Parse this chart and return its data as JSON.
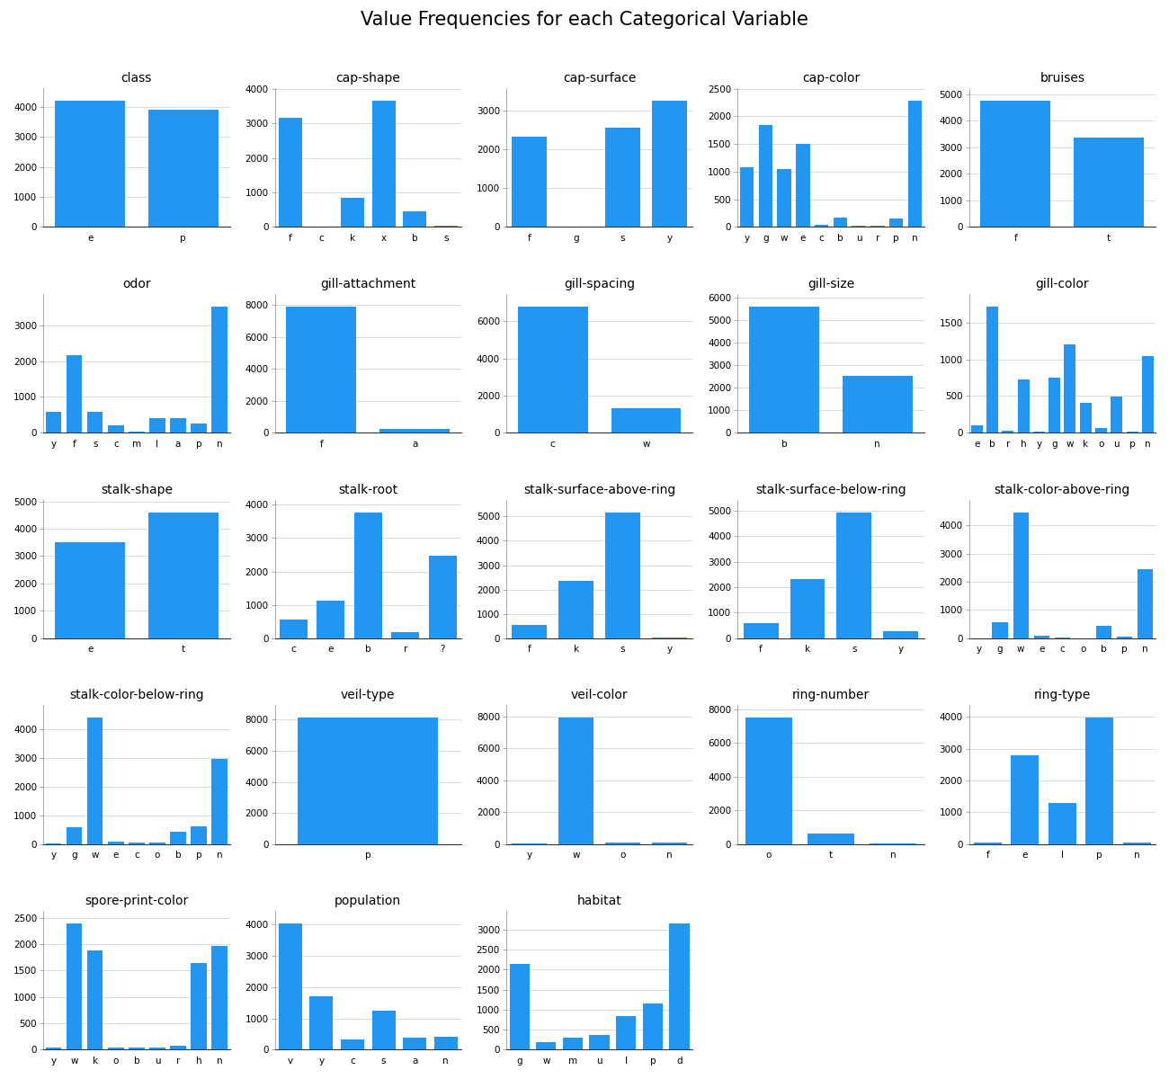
{
  "title": "Value Frequencies for each Categorical Variable",
  "bar_color": "#2196F3",
  "subplots": [
    {
      "title": "class",
      "categories": [
        "e",
        "p"
      ],
      "values": [
        4208,
        3916
      ]
    },
    {
      "title": "cap-shape",
      "categories": [
        "f",
        "c",
        "k",
        "x",
        "b",
        "s"
      ],
      "values": [
        3152,
        4,
        828,
        3656,
        452,
        32
      ]
    },
    {
      "title": "cap-surface",
      "categories": [
        "f",
        "g",
        "s",
        "y"
      ],
      "values": [
        2320,
        4,
        2556,
        3244
      ]
    },
    {
      "title": "cap-color",
      "categories": [
        "y",
        "g",
        "w",
        "e",
        "c",
        "b",
        "u",
        "r",
        "p",
        "n"
      ],
      "values": [
        1072,
        1840,
        1040,
        1500,
        44,
        168,
        16,
        16,
        144,
        2284
      ]
    },
    {
      "title": "bruises",
      "categories": [
        "f",
        "t"
      ],
      "values": [
        4748,
        3376
      ]
    },
    {
      "title": "odor",
      "categories": [
        "y",
        "f",
        "s",
        "c",
        "m",
        "l",
        "a",
        "p",
        "n"
      ],
      "values": [
        576,
        2160,
        576,
        192,
        36,
        400,
        400,
        256,
        3528
      ]
    },
    {
      "title": "gill-attachment",
      "categories": [
        "f",
        "a"
      ],
      "values": [
        7914,
        210
      ]
    },
    {
      "title": "gill-spacing",
      "categories": [
        "c",
        "w"
      ],
      "values": [
        6812,
        1312
      ]
    },
    {
      "title": "gill-size",
      "categories": [
        "b",
        "n"
      ],
      "values": [
        5612,
        2508
      ]
    },
    {
      "title": "gill-color",
      "categories": [
        "e",
        "b",
        "r",
        "h",
        "y",
        "g",
        "w",
        "k",
        "o",
        "u",
        "p",
        "n"
      ],
      "values": [
        96,
        1728,
        24,
        732,
        8,
        752,
        1202,
        408,
        64,
        492,
        16,
        1048
      ]
    },
    {
      "title": "stalk-shape",
      "categories": [
        "e",
        "t"
      ],
      "values": [
        3516,
        4608
      ]
    },
    {
      "title": "stalk-root",
      "categories": [
        "c",
        "e",
        "b",
        "r",
        "?"
      ],
      "values": [
        556,
        1120,
        3776,
        192,
        2480
      ]
    },
    {
      "title": "stalk-surface-above-ring",
      "categories": [
        "f",
        "k",
        "s",
        "y"
      ],
      "values": [
        552,
        2372,
        5176,
        24
      ]
    },
    {
      "title": "stalk-surface-below-ring",
      "categories": [
        "f",
        "k",
        "s",
        "y"
      ],
      "values": [
        600,
        2304,
        4936,
        284
      ]
    },
    {
      "title": "stalk-color-above-ring",
      "categories": [
        "y",
        "g",
        "w",
        "e",
        "c",
        "o",
        "b",
        "p",
        "n"
      ],
      "values": [
        8,
        576,
        4464,
        96,
        36,
        8,
        432,
        60,
        2448
      ]
    },
    {
      "title": "stalk-color-below-ring",
      "categories": [
        "y",
        "g",
        "w",
        "e",
        "c",
        "o",
        "b",
        "p",
        "n"
      ],
      "values": [
        8,
        576,
        4384,
        96,
        36,
        48,
        432,
        600,
        2948
      ]
    },
    {
      "title": "veil-type",
      "categories": [
        "p"
      ],
      "values": [
        8124
      ]
    },
    {
      "title": "veil-color",
      "categories": [
        "y",
        "w",
        "o",
        "n"
      ],
      "values": [
        8,
        7924,
        96,
        96
      ]
    },
    {
      "title": "ring-number",
      "categories": [
        "o",
        "t",
        "n"
      ],
      "values": [
        7488,
        600,
        36
      ]
    },
    {
      "title": "ring-type",
      "categories": [
        "f",
        "e",
        "l",
        "p",
        "n"
      ],
      "values": [
        48,
        2776,
        1296,
        3968,
        36
      ]
    },
    {
      "title": "spore-print-color",
      "categories": [
        "y",
        "w",
        "k",
        "o",
        "b",
        "u",
        "r",
        "h",
        "n"
      ],
      "values": [
        48,
        2388,
        1872,
        48,
        48,
        48,
        72,
        1632,
        1968
      ]
    },
    {
      "title": "population",
      "categories": [
        "v",
        "y",
        "c",
        "s",
        "a",
        "n"
      ],
      "values": [
        4040,
        1712,
        340,
        1248,
        384,
        400
      ]
    },
    {
      "title": "habitat",
      "categories": [
        "g",
        "w",
        "m",
        "u",
        "l",
        "p",
        "d"
      ],
      "values": [
        2148,
        192,
        292,
        368,
        832,
        1144,
        3148
      ]
    }
  ]
}
